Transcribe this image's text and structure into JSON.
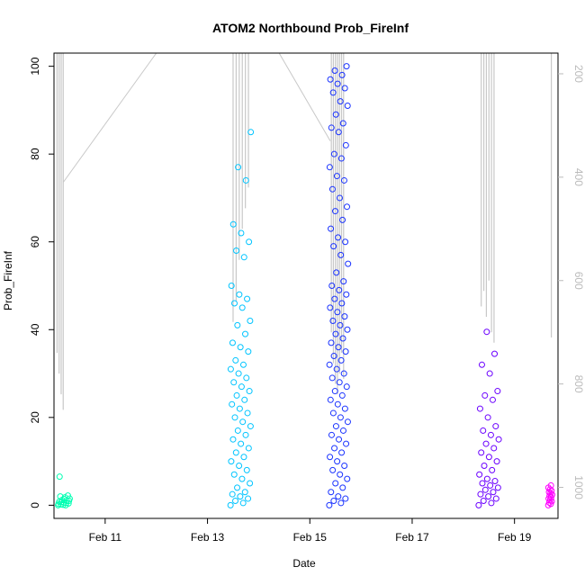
{
  "chart_data": {
    "type": "scatter",
    "title": "ATOM2 Northbound Prob_FireInf",
    "xlabel": "Date",
    "ylabel": "Prob_FireInf",
    "x_unit": "days (Feb)",
    "xlim": [
      10.0,
      19.85
    ],
    "ylim": [
      -3,
      103
    ],
    "x_ticks": [
      {
        "value": 11,
        "label": "Feb 11"
      },
      {
        "value": 13,
        "label": "Feb 13"
      },
      {
        "value": 15,
        "label": "Feb 15"
      },
      {
        "value": 17,
        "label": "Feb 17"
      },
      {
        "value": 19,
        "label": "Feb 19"
      }
    ],
    "y_ticks": [
      0,
      20,
      40,
      60,
      80,
      100
    ],
    "y2_lim": [
      1060,
      160
    ],
    "y2_ticks": [
      200,
      400,
      600,
      800,
      1000
    ],
    "y2_color": "#bbbbbb",
    "grid": false,
    "legend": "none",
    "clusters": [
      {
        "color": "#00ffb2",
        "x_range": [
          10.08,
          10.32
        ],
        "values": [
          0,
          0,
          0.2,
          0.4,
          0.6,
          0.8,
          1,
          1.2,
          1.5,
          1.8,
          2,
          2.2,
          0.1,
          0.3,
          0.5,
          0.7,
          1,
          1.4,
          6.5
        ]
      },
      {
        "color": "#00c4ff",
        "x_range": [
          13.45,
          13.85
        ],
        "values": [
          0,
          0.5,
          1,
          1.5,
          2,
          2.5,
          3,
          4,
          5,
          6,
          7,
          8,
          9,
          10,
          11,
          12,
          13,
          14,
          15,
          16,
          17,
          18,
          19,
          20,
          21,
          22,
          23,
          24,
          25,
          26,
          27,
          28,
          29,
          30,
          31,
          32,
          33,
          35,
          36,
          37,
          39,
          41,
          42,
          45,
          46,
          47,
          48,
          50,
          56.5,
          58,
          60,
          62,
          64,
          74,
          77,
          85
        ]
      },
      {
        "color": "#1a33ff",
        "x_range": [
          15.38,
          15.75
        ],
        "values": [
          0,
          0.5,
          1,
          1.5,
          2,
          3,
          4,
          5,
          6,
          7,
          8,
          9,
          10,
          11,
          12,
          13,
          14,
          15,
          16,
          17,
          18,
          19,
          20,
          21,
          22,
          23,
          24,
          25,
          26,
          27,
          28,
          29,
          30,
          31,
          32,
          33,
          34,
          35,
          36,
          37,
          38,
          39,
          40,
          41,
          42,
          43,
          44,
          45,
          46,
          47,
          48,
          49,
          50,
          51,
          53,
          55,
          57,
          59,
          60,
          61,
          63,
          65,
          67,
          68,
          70,
          72,
          74,
          75,
          77,
          79,
          80,
          82,
          85,
          86,
          87,
          89,
          91,
          92,
          94,
          95,
          96,
          97,
          98,
          99,
          100
        ]
      },
      {
        "color": "#6b00ff",
        "x_range": [
          18.3,
          18.7
        ],
        "values": [
          0,
          0.5,
          1,
          1.5,
          2,
          2.5,
          3,
          3.5,
          4,
          4.5,
          5,
          5.5,
          6,
          7,
          8,
          9,
          10,
          11,
          12,
          13,
          14,
          15,
          16,
          17,
          18,
          20,
          22,
          24,
          25,
          26,
          30,
          32,
          34.5,
          39.5
        ]
      },
      {
        "color": "#ff00ff",
        "x_range": [
          19.66,
          19.74
        ],
        "values": [
          0,
          0.3,
          0.6,
          0.9,
          1.2,
          1.5,
          1.8,
          2.1,
          2.4,
          2.7,
          3,
          3.3,
          3.6,
          4,
          4.5
        ]
      }
    ],
    "secondary_series": {
      "color": "#c8c8c8",
      "spikes": [
        {
          "x": 10.06,
          "y2": 740
        },
        {
          "x": 10.1,
          "y2": 780
        },
        {
          "x": 10.14,
          "y2": 820
        },
        {
          "x": 10.18,
          "y2": 850
        },
        {
          "x": 13.5,
          "y2": 680
        },
        {
          "x": 13.56,
          "y2": 640
        },
        {
          "x": 13.62,
          "y2": 560
        },
        {
          "x": 13.68,
          "y2": 500
        },
        {
          "x": 13.74,
          "y2": 460
        },
        {
          "x": 13.8,
          "y2": 420
        },
        {
          "x": 15.42,
          "y2": 700
        },
        {
          "x": 15.46,
          "y2": 760
        },
        {
          "x": 15.5,
          "y2": 800
        },
        {
          "x": 15.54,
          "y2": 820
        },
        {
          "x": 15.58,
          "y2": 780
        },
        {
          "x": 15.62,
          "y2": 740
        },
        {
          "x": 15.66,
          "y2": 790
        },
        {
          "x": 18.35,
          "y2": 650
        },
        {
          "x": 18.4,
          "y2": 620
        },
        {
          "x": 18.45,
          "y2": 670
        },
        {
          "x": 18.5,
          "y2": 600
        },
        {
          "x": 18.55,
          "y2": 700
        },
        {
          "x": 18.6,
          "y2": 720
        },
        {
          "x": 19.72,
          "y2": 710
        }
      ],
      "connectors": [
        [
          {
            "x": 10.18,
            "y2": 410
          },
          {
            "x": 12.0,
            "y2": 160
          }
        ],
        [
          {
            "x": 14.4,
            "y2": 160
          },
          {
            "x": 15.4,
            "y2": 330
          }
        ]
      ]
    }
  }
}
